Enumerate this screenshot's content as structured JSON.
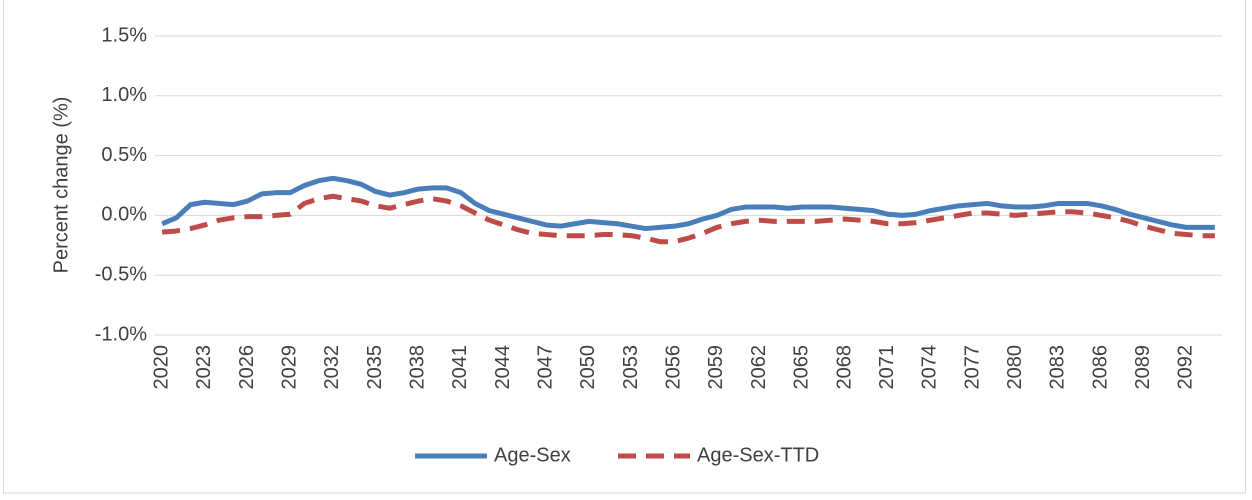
{
  "chart_data": {
    "type": "line",
    "y_label": "Percent change (%)",
    "categories": [
      "2020",
      null,
      null,
      "2023",
      null,
      null,
      "2026",
      null,
      null,
      "2029",
      null,
      null,
      "2032",
      null,
      null,
      "2035",
      null,
      null,
      "2038",
      null,
      null,
      "2041",
      null,
      null,
      "2044",
      null,
      null,
      "2047",
      null,
      null,
      "2050",
      null,
      null,
      "2053",
      null,
      null,
      "2056",
      null,
      null,
      "2059",
      null,
      null,
      "2062",
      null,
      null,
      "2065",
      null,
      null,
      "2068",
      null,
      null,
      "2071",
      null,
      null,
      "2074",
      null,
      null,
      "2077",
      null,
      null,
      "2080",
      null,
      null,
      "2083",
      null,
      null,
      "2086",
      null,
      null,
      "2089",
      null,
      null,
      "2092",
      null,
      null
    ],
    "series": [
      {
        "name": "Age-Sex",
        "color": "#4a7ebb",
        "dash": "solid",
        "values": [
          -0.07,
          -0.02,
          0.09,
          0.11,
          0.1,
          0.09,
          0.12,
          0.18,
          0.19,
          0.19,
          0.25,
          0.29,
          0.31,
          0.29,
          0.26,
          0.2,
          0.17,
          0.19,
          0.22,
          0.23,
          0.23,
          0.19,
          0.1,
          0.04,
          0.01,
          -0.02,
          -0.05,
          -0.08,
          -0.09,
          -0.07,
          -0.05,
          -0.06,
          -0.07,
          -0.09,
          -0.11,
          -0.1,
          -0.09,
          -0.07,
          -0.03,
          0.0,
          0.05,
          0.07,
          0.07,
          0.07,
          0.06,
          0.07,
          0.07,
          0.07,
          0.06,
          0.05,
          0.04,
          0.01,
          0.0,
          0.01,
          0.04,
          0.06,
          0.08,
          0.09,
          0.1,
          0.08,
          0.07,
          0.07,
          0.08,
          0.1,
          0.1,
          0.1,
          0.08,
          0.05,
          0.01,
          -0.02,
          -0.05,
          -0.08,
          -0.1,
          -0.1,
          -0.1
        ]
      },
      {
        "name": "Age-Sex-TTD",
        "color": "#be4b48",
        "dash": "dashed",
        "values": [
          -0.14,
          -0.13,
          -0.11,
          -0.08,
          -0.04,
          -0.02,
          -0.01,
          -0.01,
          0.0,
          0.01,
          0.1,
          0.14,
          0.16,
          0.14,
          0.12,
          0.08,
          0.06,
          0.09,
          0.12,
          0.14,
          0.12,
          0.08,
          0.02,
          -0.04,
          -0.08,
          -0.12,
          -0.15,
          -0.16,
          -0.17,
          -0.17,
          -0.17,
          -0.16,
          -0.16,
          -0.17,
          -0.19,
          -0.22,
          -0.22,
          -0.19,
          -0.15,
          -0.1,
          -0.07,
          -0.05,
          -0.04,
          -0.05,
          -0.05,
          -0.05,
          -0.05,
          -0.04,
          -0.03,
          -0.04,
          -0.05,
          -0.07,
          -0.07,
          -0.06,
          -0.04,
          -0.02,
          0.0,
          0.02,
          0.02,
          0.01,
          0.0,
          0.01,
          0.02,
          0.03,
          0.03,
          0.02,
          0.0,
          -0.02,
          -0.05,
          -0.09,
          -0.12,
          -0.15,
          -0.16,
          -0.17,
          -0.17
        ]
      }
    ],
    "ylim": [
      -1.0,
      1.5
    ],
    "yticks": [
      {
        "value": -1.0,
        "label": "-1.0%"
      },
      {
        "value": -0.5,
        "label": "-0.5%"
      },
      {
        "value": 0.0,
        "label": "0.0%"
      },
      {
        "value": 0.5,
        "label": "0.5%"
      },
      {
        "value": 1.0,
        "label": "1.0%"
      },
      {
        "value": 1.5,
        "label": "1.5%"
      }
    ],
    "grid": true,
    "legend": "bottom"
  }
}
